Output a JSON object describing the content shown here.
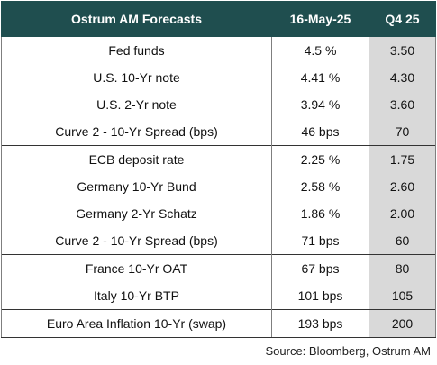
{
  "table": {
    "headers": [
      "Ostrum AM Forecasts",
      "16-May-25",
      "Q4 25"
    ],
    "groups": [
      {
        "rows": [
          {
            "label": "Fed funds",
            "current": "4.5 %",
            "forecast": "3.50"
          },
          {
            "label": "U.S.  10-Yr note",
            "current": "4.41 %",
            "forecast": "4.30"
          },
          {
            "label": "U.S. 2-Yr note",
            "current": "3.94 %",
            "forecast": "3.60"
          },
          {
            "label": "Curve 2 - 10-Yr Spread (bps)",
            "current": "46 bps",
            "forecast": "70"
          }
        ]
      },
      {
        "rows": [
          {
            "label": "ECB deposit rate",
            "current": "2.25 %",
            "forecast": "1.75"
          },
          {
            "label": "Germany  10-Yr Bund",
            "current": "2.58 %",
            "forecast": "2.60"
          },
          {
            "label": "Germany  2-Yr Schatz",
            "current": "1.86 %",
            "forecast": "2.00"
          },
          {
            "label": "Curve 2 - 10-Yr Spread (bps)",
            "current": "71 bps",
            "forecast": "60"
          }
        ]
      },
      {
        "rows": [
          {
            "label": "France 10-Yr OAT",
            "current": "67 bps",
            "forecast": "80"
          },
          {
            "label": "Italy 10-Yr BTP",
            "current": "101 bps",
            "forecast": "105"
          }
        ]
      },
      {
        "rows": [
          {
            "label": "Euro Area Inflation 10-Yr (swap)",
            "current": "193 bps",
            "forecast": "200"
          }
        ]
      }
    ]
  },
  "source": "Source: Bloomberg, Ostrum AM"
}
